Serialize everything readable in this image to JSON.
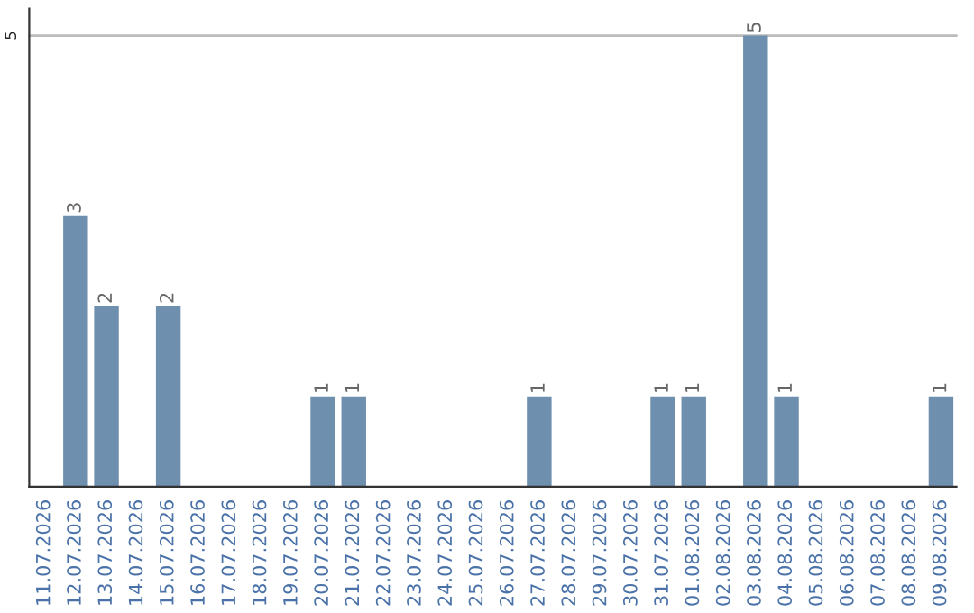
{
  "chart_data": {
    "type": "bar",
    "categories": [
      "11.07.2026",
      "12.07.2026",
      "13.07.2026",
      "14.07.2026",
      "15.07.2026",
      "16.07.2026",
      "17.07.2026",
      "18.07.2026",
      "19.07.2026",
      "20.07.2026",
      "21.07.2026",
      "22.07.2026",
      "23.07.2026",
      "24.07.2026",
      "25.07.2026",
      "26.07.2026",
      "27.07.2026",
      "28.07.2026",
      "29.07.2026",
      "30.07.2026",
      "31.07.2026",
      "01.08.2026",
      "02.08.2026",
      "03.08.2026",
      "04.08.2026",
      "05.08.2026",
      "06.08.2026",
      "07.08.2026",
      "08.08.2026",
      "09.08.2026"
    ],
    "values": [
      0,
      3,
      2,
      0,
      2,
      0,
      0,
      0,
      0,
      1,
      1,
      0,
      0,
      0,
      0,
      0,
      1,
      0,
      0,
      0,
      1,
      1,
      0,
      5,
      1,
      0,
      0,
      0,
      0,
      1
    ],
    "value_labels": [
      null,
      "3",
      "2",
      null,
      "2",
      null,
      null,
      null,
      null,
      "1",
      "1",
      null,
      null,
      null,
      null,
      null,
      "1",
      null,
      null,
      null,
      "1",
      "1",
      null,
      "5",
      "1",
      null,
      null,
      null,
      null,
      "1"
    ],
    "color": "#6f8fae",
    "ylim": [
      0,
      5.3
    ],
    "yticks": [
      5
    ],
    "grid": "y"
  }
}
